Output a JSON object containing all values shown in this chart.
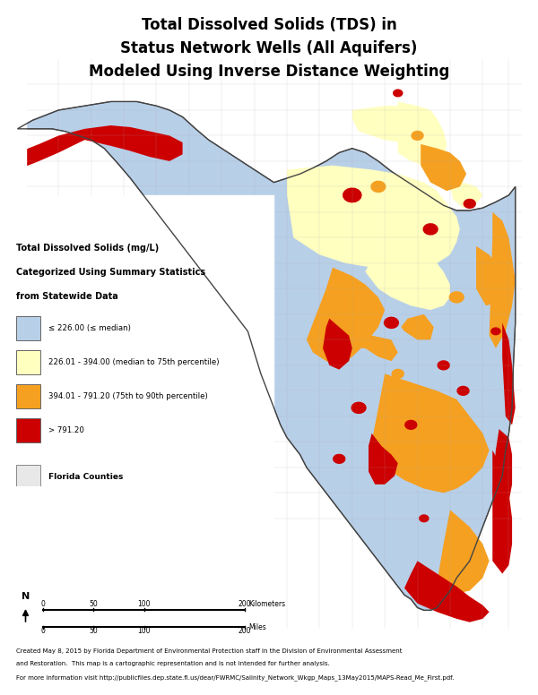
{
  "title_line1": "Total Dissolved Solids (TDS) in",
  "title_line2": "Status Network Wells (All Aquifers)",
  "title_line3": "Modeled Using Inverse Distance Weighting",
  "title_fontsize": 12,
  "title_fontweight": "bold",
  "legend_header_line1": "Total Dissolved Solids (mg/L)",
  "legend_header_line2": "Categorized Using Summary Statistics",
  "legend_header_line3": "from Statewide Data",
  "footer_line1": "Created May 8, 2015 by Florida Department of Environmental Protection staff in the Division of Environmental Assessment",
  "footer_line2": "and Restoration.  This map is a cartographic representation and is not intended for further analysis.",
  "footer_line3": "For more information visit http://publicfiles.dep.state.fl.us/dear/FWRMC/Salinity_Network_Wkgp_Maps_13May2015/MAPS-Read_Me_First.pdf.",
  "background_color": "#ffffff",
  "color_blue": "#b8cfe8",
  "color_yellow": "#ffffc0",
  "color_orange": "#f5a020",
  "color_red": "#cc0000",
  "color_county_fill": "#e8e8e8",
  "color_county_edge": "#999999",
  "color_outline": "#555555",
  "legend_items_flat": [
    [
      "≤ 226.00 (≤ median)",
      "#b8cfe8"
    ],
    [
      "226.01 - 394.00 (median to 75th percentile)",
      "#ffffc0"
    ],
    [
      "394.01 - 791.20 (75th to 90th percentile)",
      "#f5a020"
    ],
    [
      "> 791.20",
      "#cc0000"
    ]
  ],
  "legend_county_label": "Florida Counties",
  "lon_min": -87.65,
  "lon_max": -79.9,
  "lat_min": 24.4,
  "lat_max": 31.1,
  "florida_outline_lons": [
    -87.63,
    -87.4,
    -87.0,
    -86.6,
    -86.2,
    -85.8,
    -85.5,
    -85.3,
    -85.1,
    -84.9,
    -84.7,
    -84.5,
    -84.3,
    -84.1,
    -83.9,
    -83.8,
    -83.7,
    -83.5,
    -83.3,
    -83.1,
    -82.9,
    -82.7,
    -82.5,
    -82.3,
    -82.1,
    -81.9,
    -81.7,
    -81.5,
    -81.3,
    -81.1,
    -80.9,
    -80.7,
    -80.5,
    -80.3,
    -80.1,
    -80.05,
    -80.0,
    -80.0,
    -80.0,
    -80.03,
    -80.05,
    -80.1,
    -80.15,
    -80.2,
    -80.3,
    -80.4,
    -80.5,
    -80.6,
    -80.65,
    -80.7,
    -80.75,
    -80.8,
    -80.85,
    -80.9,
    -81.0,
    -81.1,
    -81.2,
    -81.3,
    -81.4,
    -81.5,
    -81.55,
    -81.6,
    -81.7,
    -81.8,
    -81.9,
    -82.0,
    -82.1,
    -82.2,
    -82.3,
    -82.4,
    -82.5,
    -82.6,
    -82.7,
    -82.8,
    -82.9,
    -83.0,
    -83.1,
    -83.2,
    -83.3,
    -83.5,
    -83.6,
    -83.7,
    -83.8,
    -83.9,
    -84.0,
    -84.1,
    -84.3,
    -84.5,
    -84.7,
    -84.9,
    -85.1,
    -85.3,
    -85.5,
    -85.7,
    -85.9,
    -86.1,
    -86.3,
    -86.5,
    -86.7,
    -86.9,
    -87.1,
    -87.3,
    -87.5,
    -87.63
  ],
  "florida_outline_lats": [
    30.28,
    30.38,
    30.5,
    30.55,
    30.6,
    30.6,
    30.55,
    30.5,
    30.42,
    30.28,
    30.15,
    30.05,
    29.95,
    29.85,
    29.75,
    29.7,
    29.65,
    29.7,
    29.75,
    29.82,
    29.9,
    30.0,
    30.05,
    30.0,
    29.9,
    29.78,
    29.68,
    29.58,
    29.48,
    29.38,
    29.32,
    29.32,
    29.35,
    29.42,
    29.5,
    29.55,
    29.6,
    28.8,
    28.0,
    27.5,
    27.0,
    26.7,
    26.5,
    26.2,
    26.0,
    25.8,
    25.6,
    25.4,
    25.3,
    25.2,
    25.15,
    25.1,
    25.05,
    25.0,
    24.85,
    24.75,
    24.65,
    24.62,
    24.62,
    24.65,
    24.7,
    24.75,
    24.8,
    24.9,
    25.0,
    25.1,
    25.2,
    25.3,
    25.4,
    25.5,
    25.6,
    25.7,
    25.8,
    25.9,
    26.0,
    26.1,
    26.2,
    26.3,
    26.45,
    26.65,
    26.8,
    27.0,
    27.2,
    27.4,
    27.65,
    27.9,
    28.1,
    28.3,
    28.5,
    28.7,
    28.9,
    29.1,
    29.3,
    29.5,
    29.7,
    29.88,
    30.05,
    30.15,
    30.2,
    30.25,
    30.28,
    30.28,
    30.28,
    30.28
  ],
  "panhandle_coast_lons": [
    -87.63,
    -87.4,
    -87.0,
    -86.6,
    -86.2,
    -85.8,
    -85.5,
    -85.3,
    -85.1,
    -84.9,
    -84.7,
    -84.5,
    -84.3,
    -84.1,
    -83.9,
    -83.8,
    -83.7,
    -83.63
  ],
  "panhandle_coast_lats": [
    30.0,
    30.1,
    30.22,
    30.28,
    30.32,
    30.32,
    30.28,
    30.22,
    30.15,
    30.02,
    29.9,
    29.8,
    29.72,
    29.62,
    29.55,
    29.52,
    29.5,
    29.48
  ],
  "east_coast_upper_lons": [
    -80.0,
    -80.0,
    -80.03,
    -80.05,
    -80.1,
    -80.0
  ],
  "east_coast_upper_lats": [
    30.6,
    30.0,
    29.5,
    29.0,
    28.5,
    28.0
  ]
}
